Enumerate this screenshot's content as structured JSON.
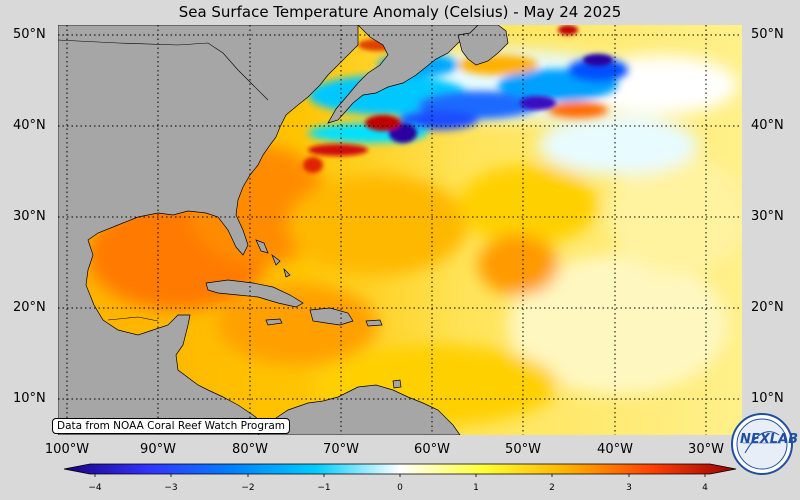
{
  "title": "Sea Surface Temperature Anomaly (Celsius) - May 24 2025",
  "credit": "Data from NOAA Coral Reef Watch Program",
  "logo": {
    "text": "NEXLAB"
  },
  "map": {
    "lat_labels": [
      "50°N",
      "40°N",
      "30°N",
      "20°N",
      "10°N"
    ],
    "lon_labels": [
      "100°W",
      "90°W",
      "80°W",
      "70°W",
      "60°W",
      "50°W",
      "40°W",
      "30°W"
    ],
    "land_color": "#a6a6a6",
    "ocean_base_color": "#ffd400"
  },
  "colorbar": {
    "ticks": [
      "−4",
      "−3",
      "−2",
      "−1",
      "0",
      "1",
      "2",
      "3",
      "4"
    ],
    "range": [
      -4,
      4
    ],
    "colors": [
      "#1a0080",
      "#3333ff",
      "#0080ff",
      "#00ccff",
      "#ffffff",
      "#ffff33",
      "#ffb000",
      "#ff4000",
      "#990000"
    ]
  }
}
